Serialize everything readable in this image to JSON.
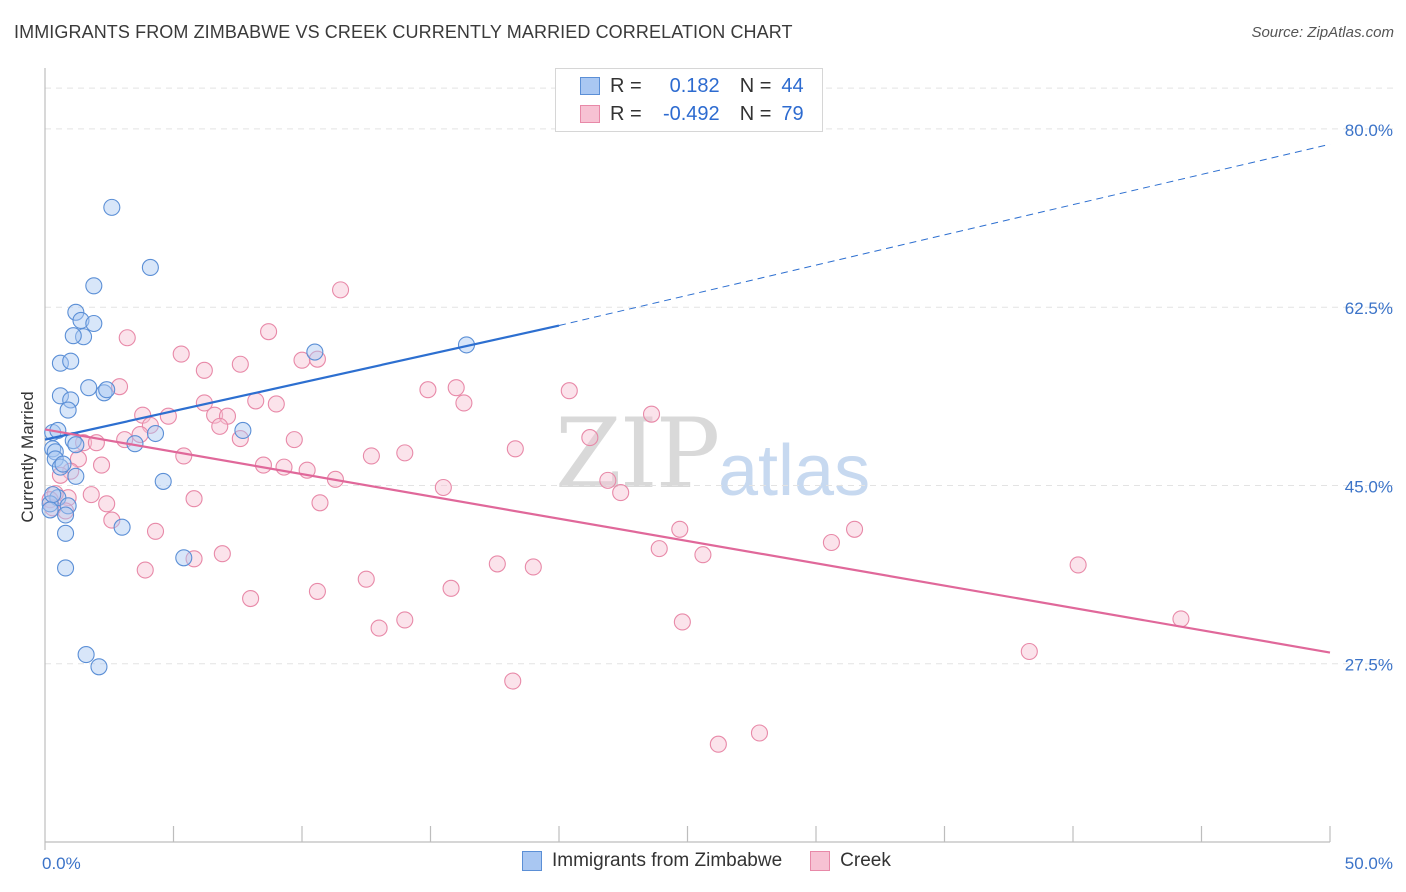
{
  "title": "IMMIGRANTS FROM ZIMBABWE VS CREEK CURRENTLY MARRIED CORRELATION CHART",
  "source": "Source: ZipAtlas.com",
  "watermark": {
    "zip": "ZIP",
    "atlas": "atlas"
  },
  "legend": {
    "rows": [
      {
        "r_label": "R =",
        "r_value": "0.182",
        "n_label": "N =",
        "n_value": "44"
      },
      {
        "r_label": "R =",
        "r_value": "-0.492",
        "n_label": "N =",
        "n_value": "79"
      }
    ]
  },
  "bottom_legend": {
    "series1": "Immigrants from Zimbabwe",
    "series2": "Creek"
  },
  "colors": {
    "blue_fill": "#a9c7f2",
    "blue_stroke": "#5b8fd6",
    "blue_line": "#2d6fd0",
    "pink_fill": "#f7c2d3",
    "pink_stroke": "#e889a8",
    "pink_line": "#e0689a",
    "axis_label": "#3b73c8",
    "grid": "#e3e3e3"
  },
  "chart_data": {
    "type": "scatter",
    "title": "IMMIGRANTS FROM ZIMBABWE VS CREEK CURRENTLY MARRIED CORRELATION CHART",
    "xlabel": "",
    "ylabel": "Currently Married",
    "xlim": [
      0,
      50
    ],
    "ylim": [
      10,
      85
    ],
    "x_tick_labels": [
      "0.0%",
      "50.0%"
    ],
    "y_ticks": [
      {
        "value": 80,
        "label": "80.0%"
      },
      {
        "value": 62.5,
        "label": "62.5%"
      },
      {
        "value": 45,
        "label": "45.0%"
      },
      {
        "value": 27.5,
        "label": "27.5%"
      }
    ],
    "series": [
      {
        "name": "Immigrants from Zimbabwe",
        "R": 0.182,
        "N": 44,
        "trend": {
          "x0": 0,
          "y0": 49.5,
          "x1": 20,
          "y1": 60.7,
          "dash_to_x": 50,
          "dash_to_y": 78.5
        },
        "points": [
          [
            2.6,
            72.3
          ],
          [
            4.1,
            66.4
          ],
          [
            1.9,
            64.6
          ],
          [
            1.2,
            62.0
          ],
          [
            1.4,
            61.2
          ],
          [
            1.9,
            60.9
          ],
          [
            1.5,
            59.6
          ],
          [
            1.1,
            59.7
          ],
          [
            0.6,
            57.0
          ],
          [
            1.0,
            57.2
          ],
          [
            10.5,
            58.1
          ],
          [
            16.4,
            58.8
          ],
          [
            1.7,
            54.6
          ],
          [
            2.3,
            54.1
          ],
          [
            0.6,
            53.8
          ],
          [
            1.0,
            53.4
          ],
          [
            2.4,
            54.4
          ],
          [
            0.9,
            52.4
          ],
          [
            0.3,
            50.2
          ],
          [
            0.5,
            50.4
          ],
          [
            4.3,
            50.1
          ],
          [
            7.7,
            50.4
          ],
          [
            1.1,
            49.4
          ],
          [
            1.2,
            49.0
          ],
          [
            3.5,
            49.1
          ],
          [
            0.3,
            48.6
          ],
          [
            0.4,
            48.3
          ],
          [
            0.4,
            47.6
          ],
          [
            0.6,
            46.8
          ],
          [
            1.2,
            45.9
          ],
          [
            4.6,
            45.4
          ],
          [
            0.5,
            43.8
          ],
          [
            0.9,
            43.0
          ],
          [
            0.8,
            42.1
          ],
          [
            3.0,
            40.9
          ],
          [
            0.8,
            40.3
          ],
          [
            5.4,
            37.9
          ],
          [
            0.8,
            36.9
          ],
          [
            1.6,
            28.4
          ],
          [
            2.1,
            27.2
          ],
          [
            0.2,
            43.2
          ],
          [
            0.3,
            44.1
          ],
          [
            0.7,
            47.1
          ],
          [
            0.2,
            42.6
          ]
        ]
      },
      {
        "name": "Creek",
        "R": -0.492,
        "N": 79,
        "trend": {
          "x0": 0,
          "y0": 50.5,
          "x1": 50,
          "y1": 28.6
        },
        "points": [
          [
            11.5,
            64.2
          ],
          [
            8.7,
            60.1
          ],
          [
            3.2,
            59.5
          ],
          [
            5.3,
            57.9
          ],
          [
            10.0,
            57.3
          ],
          [
            7.6,
            56.9
          ],
          [
            6.2,
            56.3
          ],
          [
            10.6,
            57.4
          ],
          [
            2.9,
            54.7
          ],
          [
            14.9,
            54.4
          ],
          [
            16.0,
            54.6
          ],
          [
            20.4,
            54.3
          ],
          [
            8.2,
            53.3
          ],
          [
            6.2,
            53.1
          ],
          [
            9.0,
            53.0
          ],
          [
            16.3,
            53.1
          ],
          [
            4.8,
            51.8
          ],
          [
            6.6,
            51.9
          ],
          [
            7.1,
            51.8
          ],
          [
            3.8,
            51.9
          ],
          [
            23.6,
            52.0
          ],
          [
            4.1,
            50.9
          ],
          [
            6.8,
            50.8
          ],
          [
            3.7,
            50.0
          ],
          [
            3.1,
            49.5
          ],
          [
            7.6,
            49.6
          ],
          [
            9.7,
            49.5
          ],
          [
            21.2,
            49.7
          ],
          [
            1.5,
            49.2
          ],
          [
            2.0,
            49.2
          ],
          [
            18.3,
            48.6
          ],
          [
            14.0,
            48.2
          ],
          [
            5.4,
            47.9
          ],
          [
            12.7,
            47.9
          ],
          [
            1.3,
            47.6
          ],
          [
            2.2,
            47.0
          ],
          [
            8.5,
            47.0
          ],
          [
            9.3,
            46.8
          ],
          [
            10.2,
            46.5
          ],
          [
            1.0,
            46.4
          ],
          [
            0.6,
            46.0
          ],
          [
            11.3,
            45.6
          ],
          [
            21.9,
            45.5
          ],
          [
            15.5,
            44.8
          ],
          [
            22.4,
            44.3
          ],
          [
            1.8,
            44.1
          ],
          [
            5.8,
            43.7
          ],
          [
            0.9,
            43.8
          ],
          [
            10.7,
            43.3
          ],
          [
            2.4,
            43.2
          ],
          [
            2.6,
            41.6
          ],
          [
            0.8,
            42.5
          ],
          [
            4.3,
            40.5
          ],
          [
            24.7,
            40.7
          ],
          [
            31.5,
            40.7
          ],
          [
            30.6,
            39.4
          ],
          [
            23.9,
            38.8
          ],
          [
            6.9,
            38.3
          ],
          [
            25.6,
            38.2
          ],
          [
            5.8,
            37.8
          ],
          [
            17.6,
            37.3
          ],
          [
            19.0,
            37.0
          ],
          [
            40.2,
            37.2
          ],
          [
            3.9,
            36.7
          ],
          [
            12.5,
            35.8
          ],
          [
            15.8,
            34.9
          ],
          [
            10.6,
            34.6
          ],
          [
            8.0,
            33.9
          ],
          [
            14.0,
            31.8
          ],
          [
            24.8,
            31.6
          ],
          [
            13.0,
            31.0
          ],
          [
            44.2,
            31.9
          ],
          [
            38.3,
            28.7
          ],
          [
            18.2,
            25.8
          ],
          [
            27.8,
            20.7
          ],
          [
            26.2,
            19.6
          ],
          [
            0.4,
            44.2
          ],
          [
            0.2,
            43.6
          ],
          [
            0.3,
            42.8
          ]
        ]
      }
    ]
  }
}
